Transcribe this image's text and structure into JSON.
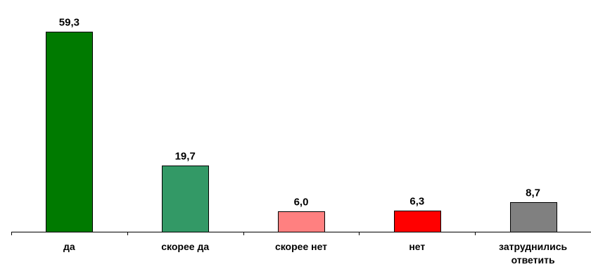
{
  "chart_data": {
    "type": "bar",
    "categories": [
      "да",
      "скорее да",
      "скорее нет",
      "нет",
      "затруднились ответить"
    ],
    "category_lines": [
      [
        "да"
      ],
      [
        "скорее да"
      ],
      [
        "скорее нет"
      ],
      [
        "нет"
      ],
      [
        "затруднились",
        "ответить"
      ]
    ],
    "values": [
      59.3,
      19.7,
      6.0,
      6.3,
      8.7
    ],
    "value_labels": [
      "59,3",
      "19,7",
      "6,0",
      "6,3",
      "8,7"
    ],
    "colors": [
      "#007a00",
      "#339966",
      "#ff8080",
      "#ff0000",
      "#808080"
    ],
    "title": "",
    "xlabel": "",
    "ylabel": "",
    "ylim": [
      0,
      60
    ],
    "grid": false,
    "legend": "none"
  }
}
